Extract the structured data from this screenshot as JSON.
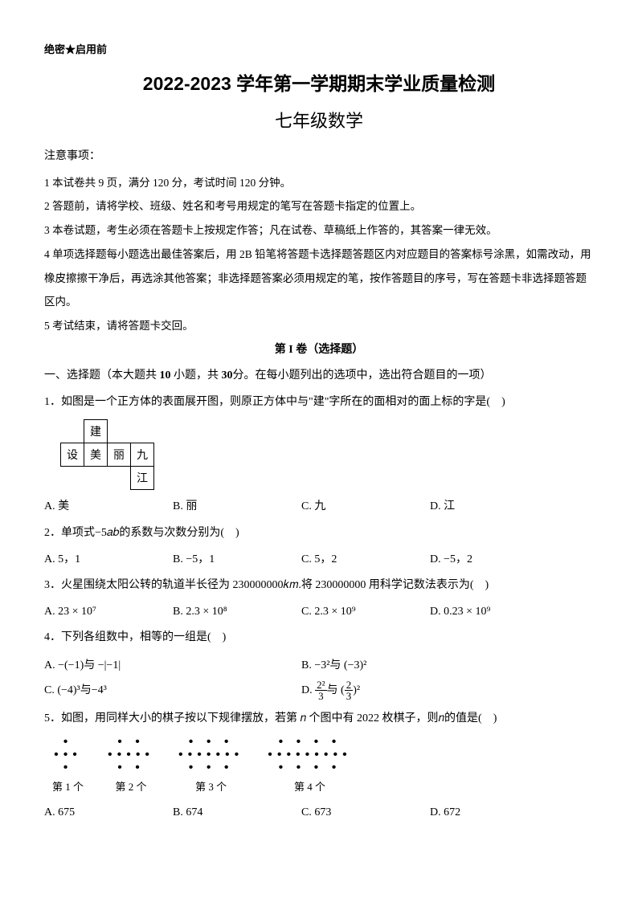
{
  "confidential": "绝密★启用前",
  "title": "2022-2023 学年第一学期期末学业质量检测",
  "subtitle": "七年级数学",
  "notice_label": "注意事项：",
  "notices": [
    "1 本试卷共 9 页，满分 120 分，考试时间 120 分钟。",
    "2 答题前，请将学校、班级、姓名和考号用规定的笔写在答题卡指定的位置上。",
    "3 本卷试题，考生必须在答题卡上按规定作答；凡在试卷、草稿纸上作答的，其答案一律无效。",
    "4 单项选择题每小题选出最佳答案后，用 2B 铅笔将答题卡选择题答题区内对应题目的答案标号涂黑，如需改动，用橡皮擦擦干净后，再选涂其他答案；非选择题答案必须用规定的笔，按作答题目的序号，写在答题卡非选择题答题区内。",
    "5 考试结束，请将答题卡交回。"
  ],
  "section1": "第 I 卷（选择题）",
  "part1_header_a": "一、选择题（本大题共 ",
  "part1_header_b": " 小题，共 ",
  "part1_header_c": "分。在每小题列出的选项中，选出符合题目的一项）",
  "part1_n": "10",
  "part1_score": "30",
  "q1": {
    "num": "1．",
    "text": "如图是一个正方体的表面展开图，则原正方体中与\"建\"字所在的面相对的面上标的字是(　)",
    "net": {
      "r1c2": "建",
      "r2c1": "设",
      "r2c2": "美",
      "r2c3": "丽",
      "r2c4": "九",
      "r3c4": "江"
    },
    "opts": {
      "A": "A. 美",
      "B": "B. 丽",
      "C": "C. 九",
      "D": "D. 江"
    }
  },
  "q2": {
    "num": "2．",
    "text": "单项式−5𝑎𝑏的系数与次数分别为(　)",
    "opts": {
      "A": "A. 5，1",
      "B": "B. −5，1",
      "C": "C. 5，2",
      "D": "D. −5，2"
    }
  },
  "q3": {
    "num": "3．",
    "text": "火星围绕太阳公转的轨道半长径为 230000000𝑘𝑚.将 230000000 用科学记数法表示为(　)",
    "opts": {
      "A": "A. 23 × 10⁷",
      "B": "B. 2.3 × 10⁸",
      "C": "C. 2.3 × 10⁹",
      "D": "D. 0.23 × 10⁹"
    }
  },
  "q4": {
    "num": "4．",
    "text": "下列各组数中，相等的一组是(　)",
    "opts": {
      "A": "A. −(−1)与 −|−1|",
      "B": "B. −3²与 (−3)²",
      "C": "C. (−4)³与−4³"
    }
  },
  "q5": {
    "num": "5．",
    "text": "如图，用同样大小的棋子按以下规律摆放，若第 𝑛 个图中有 2022 枚棋子，则𝑛的值是(　)",
    "labels": {
      "f1": "第 1 个",
      "f2": "第 2 个",
      "f3": "第 3 个",
      "f4": "第 4 个"
    },
    "opts": {
      "A": "A. 675",
      "B": "B. 674",
      "C": "C. 673",
      "D": "D. 672"
    }
  }
}
